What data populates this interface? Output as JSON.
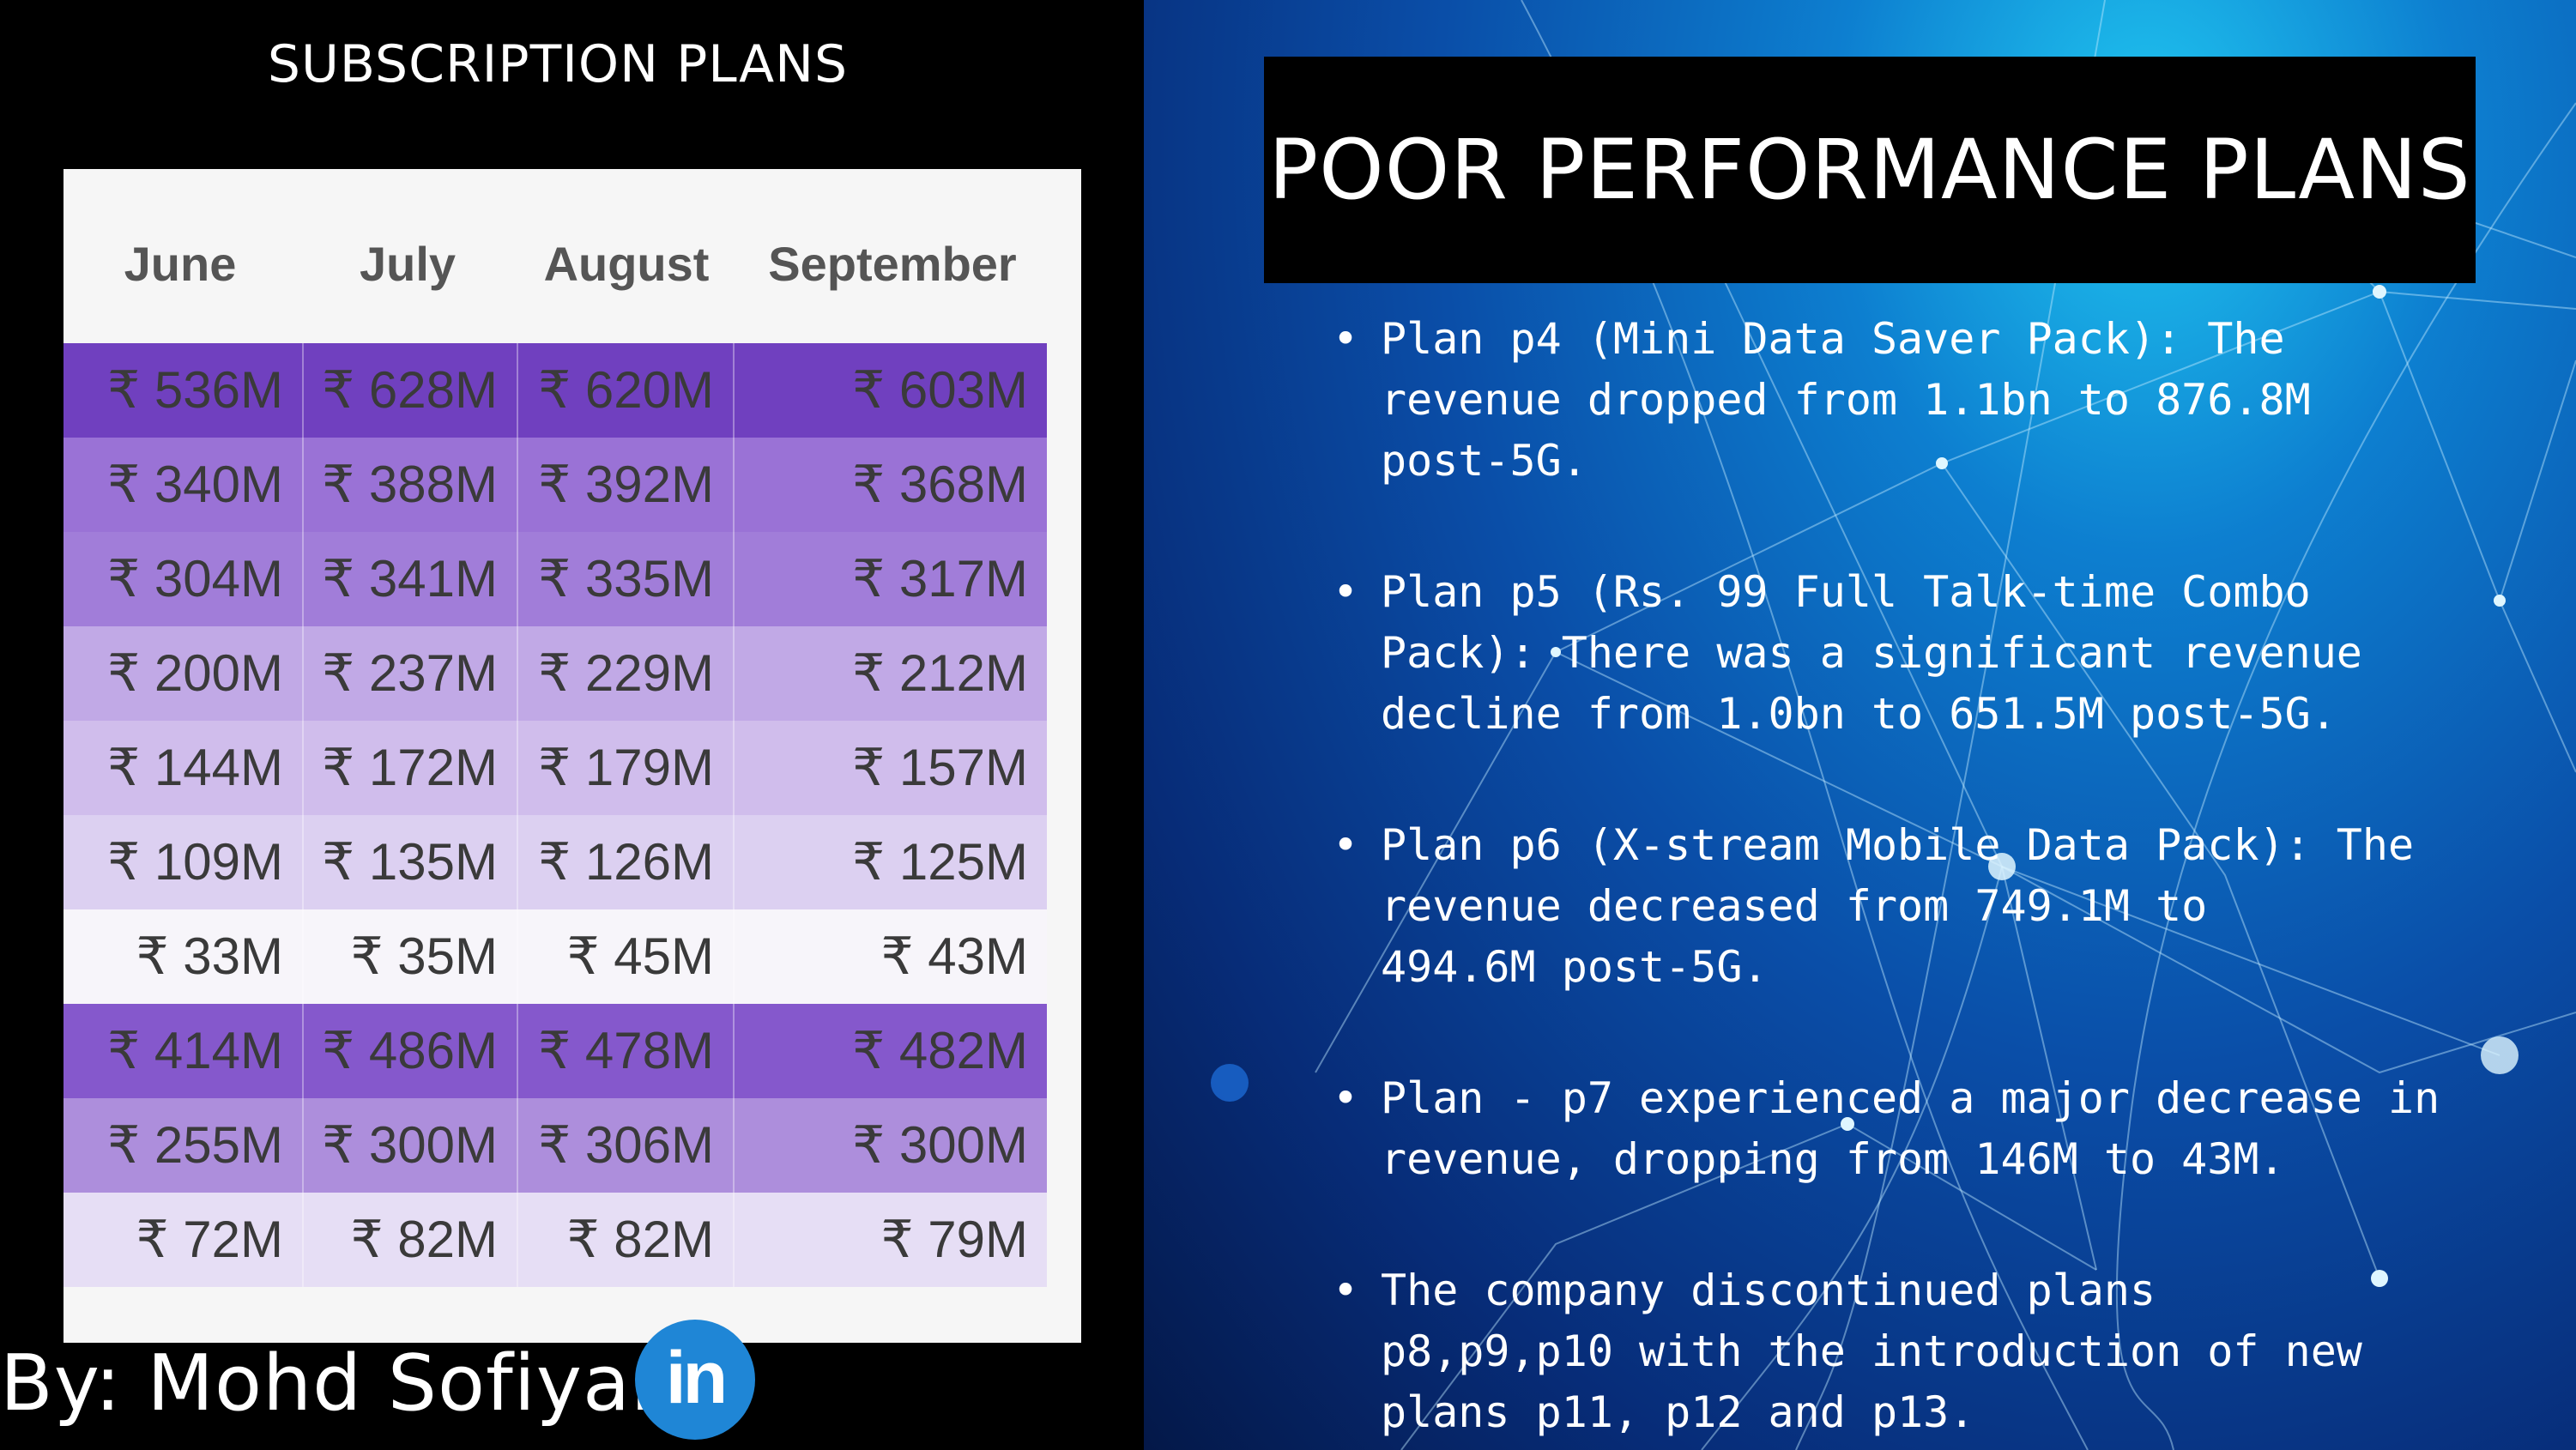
{
  "left": {
    "title": "SUBSCRIPTION PLANS",
    "columns": [
      "June",
      "July",
      "August",
      "September"
    ],
    "rows": [
      {
        "cells": [
          "₹ 536M",
          "₹ 628M",
          "₹ 620M",
          "₹ 603M"
        ],
        "color": "#7040bf",
        "text": "#3a3a3a"
      },
      {
        "cells": [
          "₹ 340M",
          "₹ 388M",
          "₹ 392M",
          "₹ 368M"
        ],
        "color": "#9a72d6",
        "text": "#3a3a3a"
      },
      {
        "cells": [
          "₹ 304M",
          "₹ 341M",
          "₹ 335M",
          "₹ 317M"
        ],
        "color": "#a17dd9",
        "text": "#3a3a3a"
      },
      {
        "cells": [
          "₹ 200M",
          "₹ 237M",
          "₹ 229M",
          "₹ 212M"
        ],
        "color": "#c1a9e6",
        "text": "#3a3a3a"
      },
      {
        "cells": [
          "₹ 144M",
          "₹ 172M",
          "₹ 179M",
          "₹ 157M"
        ],
        "color": "#d0bdec",
        "text": "#3a3a3a"
      },
      {
        "cells": [
          "₹ 109M",
          "₹ 135M",
          "₹ 126M",
          "₹ 125M"
        ],
        "color": "#dcd0f1",
        "text": "#3a3a3a"
      },
      {
        "cells": [
          "₹ 33M",
          "₹ 35M",
          "₹ 45M",
          "₹ 43M"
        ],
        "color": "#f7f5fa",
        "text": "#3a3a3a"
      },
      {
        "cells": [
          "₹ 414M",
          "₹ 486M",
          "₹ 478M",
          "₹ 482M"
        ],
        "color": "#8558cc",
        "text": "#3a3a3a"
      },
      {
        "cells": [
          "₹ 255M",
          "₹ 300M",
          "₹ 306M",
          "₹ 300M"
        ],
        "color": "#ad8edc",
        "text": "#3a3a3a"
      },
      {
        "cells": [
          "₹ 72M",
          "₹ 82M",
          "₹ 82M",
          "₹ 79M"
        ],
        "color": "#e6def5",
        "text": "#3a3a3a"
      }
    ],
    "byline": "By: Mohd Sofiyan",
    "linkedin_icon": "linkedin-icon",
    "linkedin_text": "in"
  },
  "right": {
    "heading": "POOR PERFORMANCE PLANS",
    "bullet_symbol": "•",
    "bullets": [
      "Plan p4 (Mini Data Saver Pack): The\nrevenue dropped from 1.1bn to 876.8M\npost-5G.",
      "Plan p5 (Rs. 99 Full Talk-time Combo\nPack): There was a significant revenue\ndecline from 1.0bn to 651.5M post-5G.",
      "Plan p6 (X-stream Mobile Data Pack): The\nrevenue decreased from 749.1M to\n494.6M post-5G.",
      "Plan - p7 experienced a major decrease in\nrevenue, dropping from 146M to 43M.",
      "The company discontinued plans\np8,p9,p10 with the introduction of new\nplans p11, p12 and p13."
    ]
  }
}
